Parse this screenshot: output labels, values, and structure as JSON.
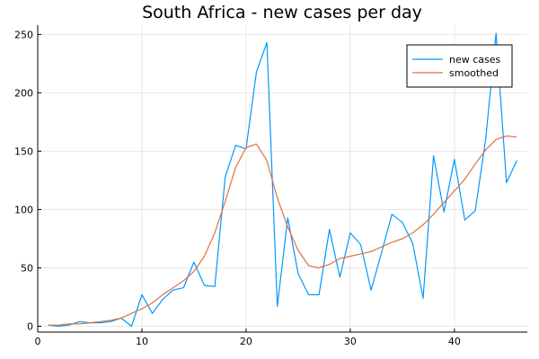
{
  "chart_data": {
    "type": "line",
    "title": "South Africa - new cases per day",
    "xlabel": "",
    "ylabel": "",
    "xlim": [
      0,
      47
    ],
    "ylim": [
      -5,
      258
    ],
    "xticks": [
      0,
      10,
      20,
      30,
      40
    ],
    "yticks": [
      0,
      50,
      100,
      150,
      200,
      250
    ],
    "grid": true,
    "legend_position": "top-right",
    "x": [
      1,
      2,
      3,
      4,
      5,
      6,
      7,
      8,
      9,
      10,
      11,
      12,
      13,
      14,
      15,
      16,
      17,
      18,
      19,
      20,
      21,
      22,
      23,
      24,
      25,
      26,
      27,
      28,
      29,
      30,
      31,
      32,
      33,
      34,
      35,
      36,
      37,
      38,
      39,
      40,
      41,
      42,
      43,
      44,
      45,
      46
    ],
    "series": [
      {
        "name": "new cases",
        "color": "#009af9",
        "values": [
          1,
          0,
          1,
          4,
          3,
          3,
          4,
          7,
          0,
          27,
          11,
          23,
          31,
          33,
          55,
          35,
          34,
          128,
          155,
          152,
          218,
          243,
          17,
          93,
          45,
          27,
          27,
          83,
          42,
          80,
          70,
          31,
          63,
          96,
          89,
          71,
          24,
          146,
          98,
          143,
          91,
          99,
          160,
          251,
          123,
          142
        ]
      },
      {
        "name": "smoothed",
        "color": "#e26f46",
        "values": [
          1,
          1,
          2,
          2,
          3,
          4,
          5,
          7,
          11,
          15,
          20,
          27,
          33,
          39,
          47,
          60,
          80,
          107,
          136,
          153,
          156,
          142,
          110,
          85,
          65,
          52,
          50,
          53,
          58,
          60,
          62,
          64,
          68,
          72,
          75,
          80,
          87,
          96,
          106,
          116,
          126,
          139,
          151,
          160,
          163,
          162
        ]
      }
    ]
  }
}
